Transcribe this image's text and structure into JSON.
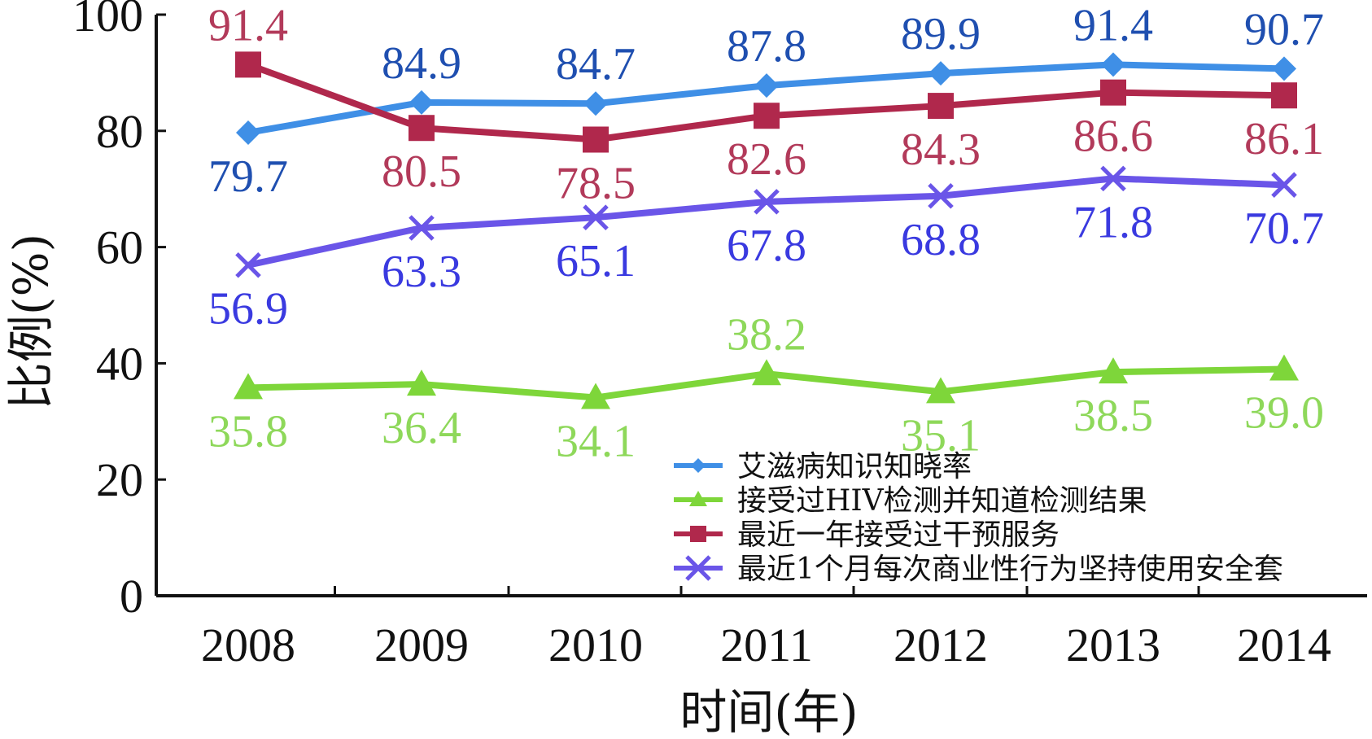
{
  "chart_data": {
    "type": "line",
    "x": [
      "2008",
      "2009",
      "2010",
      "2011",
      "2012",
      "2013",
      "2014"
    ],
    "xlabel": "时间(年)",
    "ylabel": "比例(%)",
    "ylim": [
      0,
      100
    ],
    "yticks": [
      "0",
      "20",
      "40",
      "60",
      "80",
      "100"
    ],
    "legend_position": "bottom-right",
    "series": [
      {
        "name": "艾滋病知识知晓率",
        "color": "#3f8fe6",
        "label_color": "#1f4fb0",
        "marker": "diamond",
        "label_position": "mixed",
        "values": [
          79.7,
          84.9,
          84.7,
          87.8,
          89.9,
          91.4,
          90.7
        ],
        "labels": [
          "79.7",
          "84.9",
          "84.7",
          "87.8",
          "89.9",
          "91.4",
          "90.7"
        ]
      },
      {
        "name": "接受过HIV检测并知道检测结果",
        "color": "#7ed63a",
        "label_color": "#8ed85a",
        "marker": "triangle",
        "label_position": "below",
        "values": [
          35.8,
          36.4,
          34.1,
          38.2,
          35.1,
          38.5,
          39.0
        ],
        "labels": [
          "35.8",
          "36.4",
          "34.1",
          "38.2",
          "35.1",
          "38.5",
          "39.0"
        ]
      },
      {
        "name": "最近一年接受过干预服务",
        "color": "#b0284c",
        "label_color": "#b23a5a",
        "marker": "square",
        "label_position": "mixed",
        "values": [
          91.4,
          80.5,
          78.5,
          82.6,
          84.3,
          86.6,
          86.1
        ],
        "labels": [
          "91.4",
          "80.5",
          "78.5",
          "82.6",
          "84.3",
          "86.6",
          "86.1"
        ]
      },
      {
        "name": "最近1个月每次商业性行为坚持使用安全套",
        "color": "#6a55e8",
        "label_color": "#3a3ae0",
        "marker": "x",
        "label_position": "below",
        "values": [
          56.9,
          63.3,
          65.1,
          67.8,
          68.8,
          71.8,
          70.7
        ],
        "labels": [
          "56.9",
          "63.3",
          "65.1",
          "67.8",
          "68.8",
          "71.8",
          "70.7"
        ]
      }
    ]
  }
}
